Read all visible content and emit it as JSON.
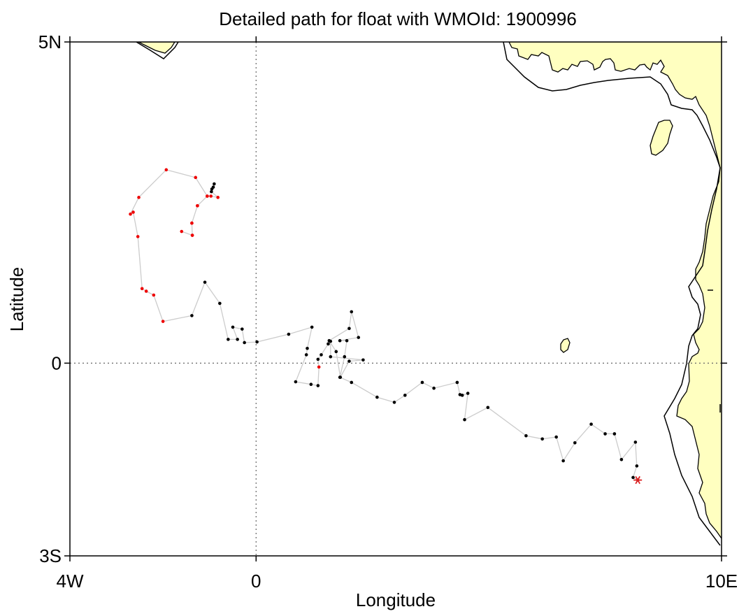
{
  "chart_data": {
    "type": "scatter",
    "title": "Detailed path for float with WMOId: 1900996",
    "xlabel": "Longitude",
    "ylabel": "Latitude",
    "xlim": [
      -4,
      10
    ],
    "ylim": [
      -3,
      5
    ],
    "x_ticks": [
      {
        "value": -4,
        "label": "4W"
      },
      {
        "value": 0,
        "label": "0"
      },
      {
        "value": 10,
        "label": "10E"
      }
    ],
    "y_ticks": [
      {
        "value": 5,
        "label": "5N"
      },
      {
        "value": 0,
        "label": "0"
      },
      {
        "value": -3,
        "label": "3S"
      }
    ],
    "reference_lines": [
      {
        "axis": "x",
        "value": 0,
        "style": "dotted"
      },
      {
        "axis": "y",
        "value": 0,
        "style": "dotted"
      }
    ],
    "colors": {
      "land": "#ffffc0",
      "path_line": "#cccccc",
      "black_points": "#000000",
      "red_points": "#ee0000",
      "end_marker": "#dd2222"
    },
    "end_marker": {
      "lon": 8.2,
      "lat": -1.82,
      "symbol": "*"
    },
    "path": [
      {
        "lon": 8.2,
        "lat": -1.82,
        "c": "k"
      },
      {
        "lon": 8.1,
        "lat": -1.78,
        "c": "k"
      },
      {
        "lon": 8.18,
        "lat": -1.6,
        "c": "k"
      },
      {
        "lon": 8.15,
        "lat": -1.23,
        "c": "k"
      },
      {
        "lon": 7.85,
        "lat": -1.5,
        "c": "k"
      },
      {
        "lon": 7.7,
        "lat": -1.1,
        "c": "k"
      },
      {
        "lon": 7.5,
        "lat": -1.1,
        "c": "k"
      },
      {
        "lon": 7.2,
        "lat": -0.95,
        "c": "k"
      },
      {
        "lon": 6.85,
        "lat": -1.24,
        "c": "k"
      },
      {
        "lon": 6.6,
        "lat": -1.52,
        "c": "k"
      },
      {
        "lon": 6.45,
        "lat": -1.15,
        "c": "k"
      },
      {
        "lon": 6.15,
        "lat": -1.18,
        "c": "k"
      },
      {
        "lon": 5.8,
        "lat": -1.13,
        "c": "k"
      },
      {
        "lon": 4.98,
        "lat": -0.69,
        "c": "k"
      },
      {
        "lon": 4.48,
        "lat": -0.88,
        "c": "k"
      },
      {
        "lon": 4.55,
        "lat": -0.47,
        "c": "k"
      },
      {
        "lon": 4.43,
        "lat": -0.5,
        "c": "k"
      },
      {
        "lon": 4.38,
        "lat": -0.49,
        "c": "k"
      },
      {
        "lon": 4.32,
        "lat": -0.3,
        "c": "k"
      },
      {
        "lon": 3.82,
        "lat": -0.39,
        "c": "k"
      },
      {
        "lon": 3.57,
        "lat": -0.3,
        "c": "k"
      },
      {
        "lon": 3.2,
        "lat": -0.5,
        "c": "k"
      },
      {
        "lon": 2.97,
        "lat": -0.61,
        "c": "k"
      },
      {
        "lon": 2.6,
        "lat": -0.53,
        "c": "k"
      },
      {
        "lon": 2.05,
        "lat": -0.3,
        "c": "k"
      },
      {
        "lon": 1.8,
        "lat": -0.22,
        "c": "k"
      },
      {
        "lon": 1.9,
        "lat": 0.1,
        "c": "k"
      },
      {
        "lon": 1.95,
        "lat": 0.35,
        "c": "k"
      },
      {
        "lon": 1.8,
        "lat": 0.35,
        "c": "k"
      },
      {
        "lon": 2.2,
        "lat": 0.4,
        "c": "k"
      },
      {
        "lon": 2.05,
        "lat": 0.8,
        "c": "k"
      },
      {
        "lon": 2.0,
        "lat": 0.54,
        "c": "k"
      },
      {
        "lon": 1.57,
        "lat": 0.35,
        "c": "k"
      },
      {
        "lon": 1.72,
        "lat": 0.18,
        "c": "k"
      },
      {
        "lon": 1.81,
        "lat": -0.22,
        "c": "k"
      },
      {
        "lon": 2.0,
        "lat": 0.03,
        "c": "k"
      },
      {
        "lon": 2.3,
        "lat": 0.05,
        "c": "k"
      },
      {
        "lon": 1.6,
        "lat": 0.1,
        "c": "k"
      },
      {
        "lon": 1.6,
        "lat": 0.34,
        "c": "k"
      },
      {
        "lon": 1.55,
        "lat": 0.3,
        "c": "k"
      },
      {
        "lon": 1.4,
        "lat": 0.13,
        "c": "k"
      },
      {
        "lon": 1.33,
        "lat": 0.06,
        "c": "k"
      },
      {
        "lon": 1.35,
        "lat": -0.06,
        "c": "r"
      },
      {
        "lon": 1.33,
        "lat": -0.35,
        "c": "k"
      },
      {
        "lon": 1.18,
        "lat": -0.33,
        "c": "k"
      },
      {
        "lon": 0.85,
        "lat": -0.29,
        "c": "k"
      },
      {
        "lon": 1.08,
        "lat": 0.13,
        "c": "k"
      },
      {
        "lon": 1.1,
        "lat": 0.23,
        "c": "k"
      },
      {
        "lon": 1.2,
        "lat": 0.56,
        "c": "k"
      },
      {
        "lon": 0.7,
        "lat": 0.45,
        "c": "k"
      },
      {
        "lon": 0.02,
        "lat": 0.33,
        "c": "k"
      },
      {
        "lon": -0.25,
        "lat": 0.32,
        "c": "k"
      },
      {
        "lon": -0.3,
        "lat": 0.53,
        "c": "k"
      },
      {
        "lon": -0.5,
        "lat": 0.56,
        "c": "k"
      },
      {
        "lon": -0.4,
        "lat": 0.37,
        "c": "k"
      },
      {
        "lon": -0.6,
        "lat": 0.37,
        "c": "k"
      },
      {
        "lon": -0.78,
        "lat": 0.93,
        "c": "k"
      },
      {
        "lon": -1.1,
        "lat": 1.26,
        "c": "k"
      },
      {
        "lon": -1.38,
        "lat": 0.74,
        "c": "k"
      },
      {
        "lon": -2.0,
        "lat": 0.65,
        "c": "r"
      },
      {
        "lon": -2.2,
        "lat": 1.06,
        "c": "r"
      },
      {
        "lon": -2.36,
        "lat": 1.12,
        "c": "r"
      },
      {
        "lon": -2.45,
        "lat": 1.16,
        "c": "r"
      },
      {
        "lon": -2.54,
        "lat": 1.97,
        "c": "r"
      },
      {
        "lon": -2.64,
        "lat": 2.35,
        "c": "r"
      },
      {
        "lon": -2.7,
        "lat": 2.32,
        "c": "r"
      },
      {
        "lon": -2.52,
        "lat": 2.58,
        "c": "r"
      },
      {
        "lon": -1.93,
        "lat": 3.01,
        "c": "r"
      },
      {
        "lon": -1.3,
        "lat": 2.89,
        "c": "r"
      },
      {
        "lon": -1.05,
        "lat": 2.6,
        "c": "r"
      },
      {
        "lon": -1.26,
        "lat": 2.45,
        "c": "r"
      },
      {
        "lon": -1.38,
        "lat": 2.18,
        "c": "r"
      },
      {
        "lon": -1.37,
        "lat": 1.99,
        "c": "r"
      },
      {
        "lon": -1.6,
        "lat": 2.05,
        "c": "r"
      },
      {
        "lon": -1.37,
        "lat": 1.99,
        "c": "r"
      },
      {
        "lon": -1.38,
        "lat": 2.18,
        "c": "r"
      },
      {
        "lon": -1.26,
        "lat": 2.45,
        "c": "r"
      },
      {
        "lon": -1.05,
        "lat": 2.6,
        "c": "r"
      },
      {
        "lon": -0.97,
        "lat": 2.6,
        "c": "r"
      },
      {
        "lon": -0.82,
        "lat": 2.58,
        "c": "r"
      },
      {
        "lon": -0.96,
        "lat": 2.67,
        "c": "k"
      },
      {
        "lon": -0.95,
        "lat": 2.71,
        "c": "k"
      },
      {
        "lon": -0.92,
        "lat": 2.74,
        "c": "k"
      },
      {
        "lon": -0.9,
        "lat": 2.79,
        "c": "k"
      }
    ]
  }
}
